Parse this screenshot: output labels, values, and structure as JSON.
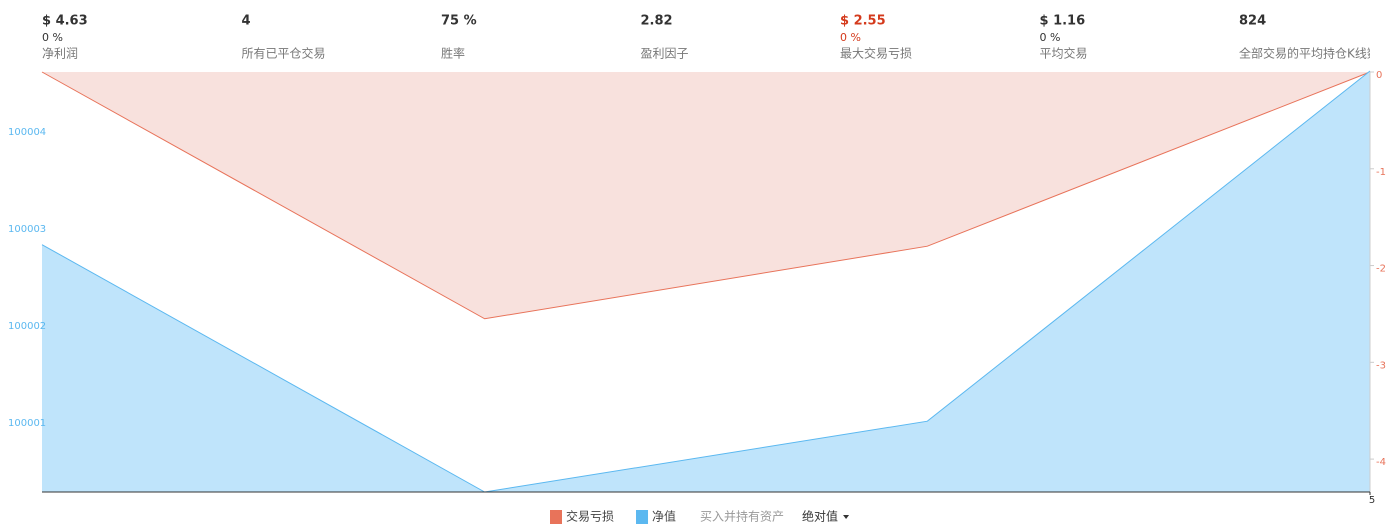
{
  "stats": [
    {
      "value": "$ 4.63",
      "percent": "0 %",
      "label": "净利润"
    },
    {
      "value": "4",
      "label": "所有已平仓交易"
    },
    {
      "value": "75 %",
      "label": "胜率"
    },
    {
      "value": "2.82",
      "label": "盈利因子"
    },
    {
      "value": "$ 2.55",
      "percent": "0 %",
      "label": "最大交易亏损",
      "color": "#d43a1c"
    },
    {
      "value": "$ 1.16",
      "percent": "0 %",
      "label": "平均交易"
    },
    {
      "value": "824",
      "label": "全部交易的平均持仓K线数"
    }
  ],
  "chart_data": {
    "type": "area",
    "x": [
      2,
      3,
      4,
      5
    ],
    "xlim": [
      2,
      5
    ],
    "xticks": [
      5
    ],
    "ylim": [
      100000.29,
      100004.62
    ],
    "yticks": [
      100001,
      100002,
      100003,
      100004
    ],
    "y2lim": [
      -4.34,
      0
    ],
    "y2ticks": [
      0,
      -1,
      -2,
      -3,
      -4
    ],
    "series": [
      {
        "name": "交易亏损",
        "color": "#e8735a",
        "fill": "#f8e1dd",
        "axis": "y2",
        "values": [
          0,
          -2.55,
          -1.8,
          0
        ]
      },
      {
        "name": "净值",
        "color": "#5bb8f0",
        "fill": "#bfe4fb",
        "values": [
          100002.84,
          100000.29,
          100001.02,
          100004.63
        ]
      }
    ],
    "buy_hold": "买入并持有资产",
    "mode": "绝对值"
  }
}
